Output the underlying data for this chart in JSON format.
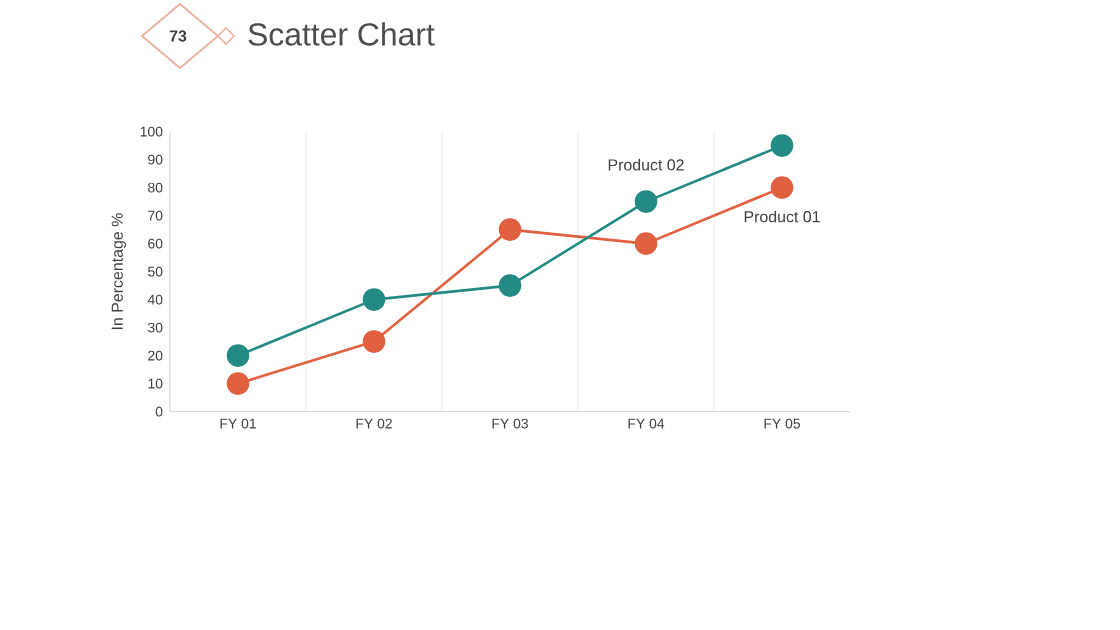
{
  "chart_data": {
    "type": "line",
    "title": "Scatter Chart",
    "ylabel": "In Percentage %",
    "annotations": [
      "73"
    ],
    "categories": [
      "FY 01",
      "FY 02",
      "FY 03",
      "FY 04",
      "FY 05"
    ],
    "series": [
      {
        "name": "Product 01",
        "color": "#e0603f",
        "values": [
          10,
          25,
          65,
          60,
          80
        ]
      },
      {
        "name": "Product 02",
        "color": "#248a84",
        "values": [
          20,
          40,
          45,
          75,
          95
        ]
      }
    ],
    "ylim": [
      0,
      100
    ],
    "yticks": [
      0,
      10,
      20,
      30,
      40,
      50,
      60,
      70,
      80,
      90,
      100
    ],
    "grid": "x",
    "marker": "circle",
    "line_style": "solid"
  }
}
